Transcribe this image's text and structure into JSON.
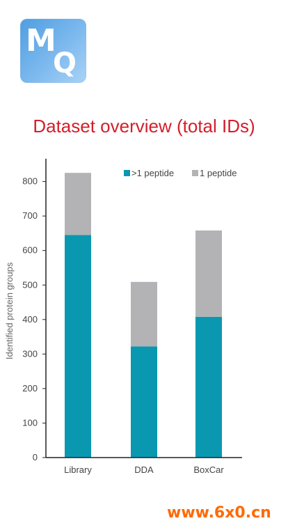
{
  "logo": {
    "letter_m": "M",
    "letter_q": "Q"
  },
  "chart_data": {
    "type": "bar",
    "stacked": true,
    "title": "Dataset overview (total IDs)",
    "xlabel": "",
    "ylabel": "Identified protein groups",
    "categories": [
      "Library",
      "DDA",
      "BoxCar"
    ],
    "series": [
      {
        "name": ">1 peptide",
        "values": [
          645,
          322,
          408
        ],
        "color": "#0a98b0"
      },
      {
        "name": "1 peptide",
        "values": [
          180,
          187,
          250
        ],
        "color": "#b3b3b5"
      }
    ],
    "ylim": [
      0,
      850
    ],
    "yticks": [
      "0",
      "100",
      "200",
      "300",
      "400",
      "500",
      "600",
      "700",
      "800"
    ],
    "grid": false,
    "legend_position": "top-right"
  },
  "watermark": "www.6x0.cn"
}
